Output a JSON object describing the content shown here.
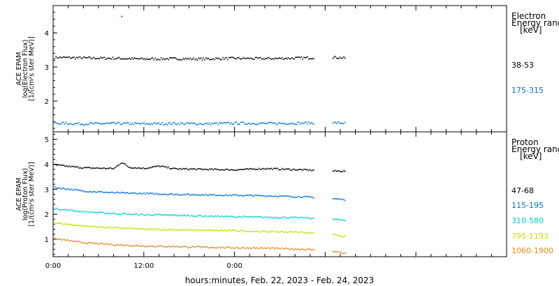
{
  "chart_data": [
    {
      "type": "scatter",
      "panel": "electron",
      "ylabel_lines": [
        "ACE EPAM",
        "log(Electron Flux)",
        "[1/(cm²s ster MeV)]"
      ],
      "ylim": [
        1.1,
        4.8
      ],
      "yticks": [
        2,
        3,
        4
      ],
      "legend_title": [
        "Electron",
        "Energy ranges",
        "[keV]"
      ],
      "x_hours_range": [
        0,
        60
      ],
      "series": [
        {
          "name": "38-53",
          "color": "#000000",
          "x_hours": [
            0,
            4,
            8,
            12,
            16,
            20,
            24,
            28,
            33,
            37,
            38.5
          ],
          "y": [
            3.3,
            3.28,
            3.27,
            3.25,
            3.26,
            3.25,
            3.27,
            3.26,
            3.28,
            3.3,
            3.28
          ]
        },
        {
          "name": "175-315",
          "color": "#0073d9",
          "x_hours": [
            0,
            4,
            8,
            12,
            16,
            20,
            24,
            28,
            33,
            37,
            38.5
          ],
          "y": [
            1.37,
            1.35,
            1.36,
            1.35,
            1.36,
            1.35,
            1.37,
            1.36,
            1.37,
            1.38,
            1.37
          ]
        }
      ],
      "annotations": [
        {
          "x_hours": 9,
          "y": 4.5,
          "color": "#0073d9"
        }
      ]
    },
    {
      "type": "scatter",
      "panel": "proton",
      "ylabel_lines": [
        "ACE EPAM",
        "log(Proton Flux)",
        "[1/(cm²s ster MeV)]"
      ],
      "ylim": [
        0.3,
        5.3
      ],
      "yticks": [
        1,
        2,
        3,
        4,
        5
      ],
      "legend_title": [
        "Proton",
        "Energy ranges",
        "[keV]"
      ],
      "x_hours_range": [
        0,
        60
      ],
      "series": [
        {
          "name": "47-68",
          "color": "#000000",
          "x_hours": [
            0,
            4,
            8,
            9,
            10,
            12,
            14,
            16,
            20,
            24,
            28,
            33,
            37,
            38.5
          ],
          "y": [
            4.0,
            3.88,
            3.85,
            4.1,
            3.9,
            3.86,
            3.95,
            3.84,
            3.82,
            3.8,
            3.85,
            3.8,
            3.75,
            3.75
          ]
        },
        {
          "name": "115-195",
          "color": "#0073d9",
          "x_hours": [
            0,
            4,
            8,
            12,
            16,
            20,
            24,
            28,
            33,
            37,
            38.5
          ],
          "y": [
            3.1,
            2.95,
            2.88,
            2.85,
            2.82,
            2.8,
            2.78,
            2.76,
            2.72,
            2.65,
            2.6
          ]
        },
        {
          "name": "310-580",
          "color": "#00d0d0",
          "x_hours": [
            0,
            4,
            8,
            12,
            16,
            20,
            24,
            28,
            33,
            37,
            38.5
          ],
          "y": [
            2.25,
            2.12,
            2.05,
            2.0,
            1.98,
            1.95,
            1.92,
            1.9,
            1.88,
            1.82,
            1.78
          ]
        },
        {
          "name": "795-1193",
          "color": "#c8dc00",
          "x_hours": [
            0,
            4,
            8,
            12,
            16,
            20,
            24,
            28,
            33,
            37,
            38.5
          ],
          "y": [
            1.68,
            1.55,
            1.48,
            1.42,
            1.4,
            1.38,
            1.36,
            1.33,
            1.3,
            1.22,
            1.12
          ]
        },
        {
          "name": "1060-1900",
          "color": "#e08a1e",
          "x_hours": [
            0,
            4,
            8,
            12,
            16,
            20,
            24,
            28,
            33,
            37,
            38.5
          ],
          "y": [
            1.05,
            0.88,
            0.8,
            0.75,
            0.73,
            0.7,
            0.68,
            0.66,
            0.62,
            0.55,
            0.45
          ]
        }
      ]
    }
  ],
  "x_axis": {
    "tick_labels": [
      "0:00",
      "12:00",
      "0:00"
    ],
    "tick_hours": [
      0,
      12,
      24
    ],
    "xlabel": "hours:minutes, Feb. 22, 2023 - Feb. 24, 2023"
  }
}
